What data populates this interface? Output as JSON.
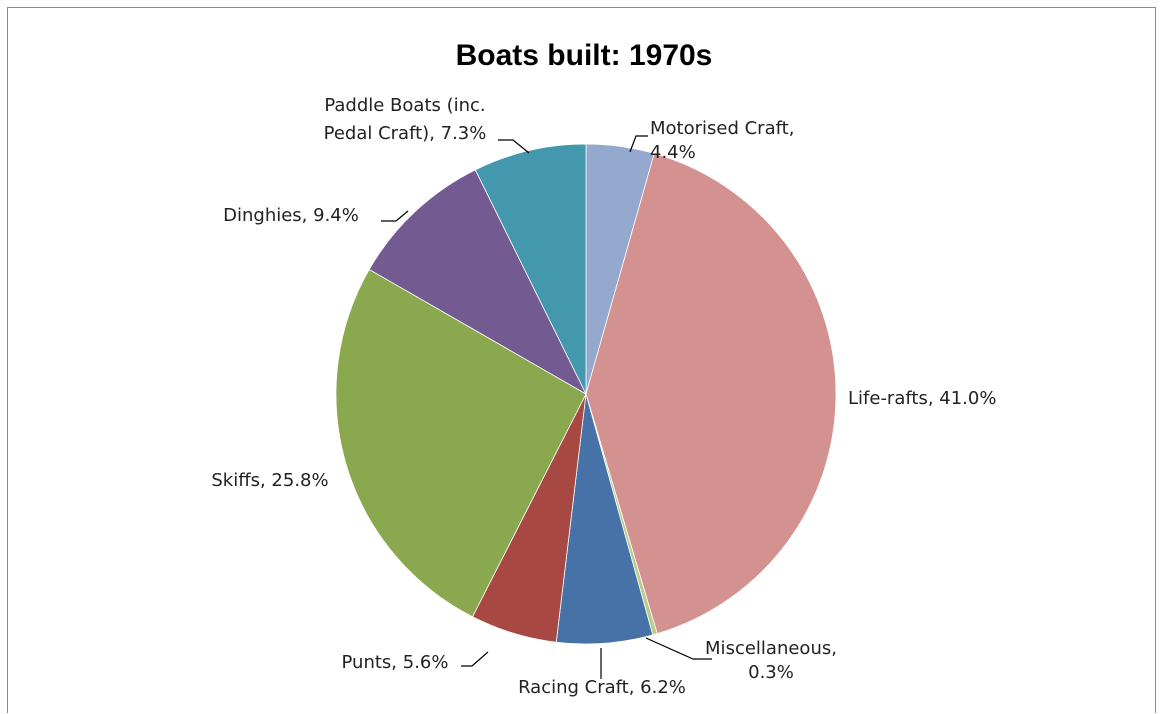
{
  "chart_data": {
    "type": "pie",
    "title": "Boats built: 1970s",
    "slices": [
      {
        "name": "Motorised Craft",
        "value": 4.4,
        "label_lines": [
          "Motorised Craft,",
          "4.4%"
        ],
        "color": "#95a9cf"
      },
      {
        "name": "Life-rafts",
        "value": 41.0,
        "label_lines": [
          "Life-rafts, 41.0%"
        ],
        "color": "#d39190"
      },
      {
        "name": "Miscellaneous",
        "value": 0.3,
        "label_lines": [
          "Miscellaneous,",
          "0.3%"
        ],
        "color": "#b9cc8c"
      },
      {
        "name": "Racing Craft",
        "value": 6.2,
        "label_lines": [
          "Racing Craft, 6.2%"
        ],
        "color": "#4672a7"
      },
      {
        "name": "Punts",
        "value": 5.6,
        "label_lines": [
          "Punts, 5.6%"
        ],
        "color": "#a84843"
      },
      {
        "name": "Skiffs",
        "value": 25.8,
        "label_lines": [
          "Skiffs, 25.8%"
        ],
        "color": "#8aa84e"
      },
      {
        "name": "Dinghies",
        "value": 9.4,
        "label_lines": [
          "Dinghies, 9.4%"
        ],
        "color": "#735a90"
      },
      {
        "name": "Paddle Boats (inc. Pedal Craft)",
        "value": 7.3,
        "label_lines": [
          "Paddle Boats (inc.",
          "Pedal Craft), 7.3%"
        ],
        "color": "#4498ae"
      }
    ],
    "start_angle_deg": 0,
    "direction": "clockwise",
    "legend": "none"
  }
}
